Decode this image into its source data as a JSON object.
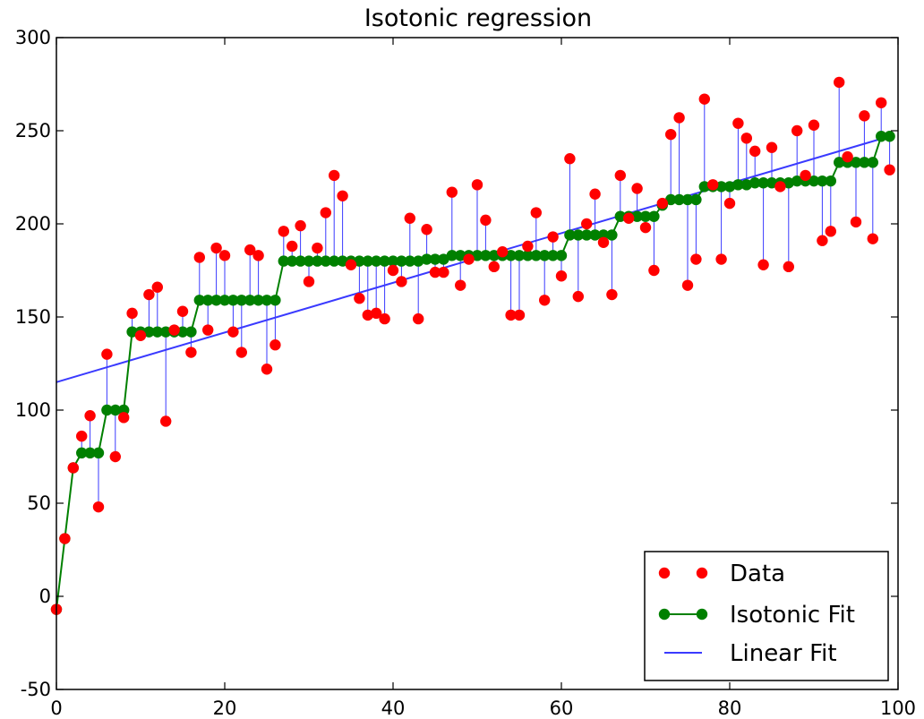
{
  "chart_data": {
    "type": "scatter",
    "title": "Isotonic regression",
    "xlabel": "",
    "ylabel": "",
    "xlim": [
      0,
      100
    ],
    "ylim": [
      -50,
      300
    ],
    "xticks": [
      0,
      20,
      40,
      60,
      80,
      100
    ],
    "yticks": [
      -50,
      0,
      50,
      100,
      150,
      200,
      250,
      300
    ],
    "grid": false,
    "legend_position": "lower-right",
    "colors": {
      "data": "#ff0000",
      "isotonic": "#008000",
      "linear": "#3a3aff"
    },
    "series": [
      {
        "name": "Data",
        "kind": "points",
        "x": [
          0,
          1,
          2,
          3,
          4,
          5,
          6,
          7,
          8,
          9,
          10,
          11,
          12,
          13,
          14,
          15,
          16,
          17,
          18,
          19,
          20,
          21,
          22,
          23,
          24,
          25,
          26,
          27,
          28,
          29,
          30,
          31,
          32,
          33,
          34,
          35,
          36,
          37,
          38,
          39,
          40,
          41,
          42,
          43,
          44,
          45,
          46,
          47,
          48,
          49,
          50,
          51,
          52,
          53,
          54,
          55,
          56,
          57,
          58,
          59,
          60,
          61,
          62,
          63,
          64,
          65,
          66,
          67,
          68,
          69,
          70,
          71,
          72,
          73,
          74,
          75,
          76,
          77,
          78,
          79,
          80,
          81,
          82,
          83,
          84,
          85,
          86,
          87,
          88,
          89,
          90,
          91,
          92,
          93,
          94,
          95,
          96,
          97,
          98,
          99
        ],
        "y": [
          -7,
          31,
          69,
          86,
          97,
          48,
          130,
          75,
          96,
          152,
          140,
          162,
          166,
          94,
          143,
          153,
          131,
          182,
          143,
          187,
          183,
          142,
          131,
          186,
          183,
          122,
          135,
          196,
          188,
          199,
          169,
          187,
          206,
          226,
          215,
          178,
          160,
          151,
          152,
          149,
          175,
          169,
          203,
          149,
          197,
          174,
          174,
          217,
          167,
          181,
          221,
          202,
          177,
          185,
          151,
          151,
          188,
          206,
          159,
          193,
          172,
          235,
          161,
          200,
          216,
          190,
          162,
          226,
          203,
          219,
          198,
          175,
          211,
          248,
          257,
          167,
          181,
          267,
          221,
          181,
          211,
          254,
          246,
          239,
          178,
          241,
          220,
          177,
          250,
          226,
          253,
          191,
          196,
          276,
          236,
          201,
          258,
          192,
          265,
          229
        ]
      },
      {
        "name": "Isotonic Fit",
        "kind": "line+points",
        "x": [
          0,
          1,
          2,
          3,
          4,
          5,
          6,
          7,
          8,
          9,
          10,
          11,
          12,
          13,
          14,
          15,
          16,
          17,
          18,
          19,
          20,
          21,
          22,
          23,
          24,
          25,
          26,
          27,
          28,
          29,
          30,
          31,
          32,
          33,
          34,
          35,
          36,
          37,
          38,
          39,
          40,
          41,
          42,
          43,
          44,
          45,
          46,
          47,
          48,
          49,
          50,
          51,
          52,
          53,
          54,
          55,
          56,
          57,
          58,
          59,
          60,
          61,
          62,
          63,
          64,
          65,
          66,
          67,
          68,
          69,
          70,
          71,
          72,
          73,
          74,
          75,
          76,
          77,
          78,
          79,
          80,
          81,
          82,
          83,
          84,
          85,
          86,
          87,
          88,
          89,
          90,
          91,
          92,
          93,
          94,
          95,
          96,
          97,
          98,
          99
        ],
        "y": [
          -7,
          31,
          69,
          77,
          77,
          77,
          100,
          100,
          100,
          142,
          142,
          142,
          142,
          142,
          142,
          142,
          142,
          159,
          159,
          159,
          159,
          159,
          159,
          159,
          159,
          159,
          159,
          180,
          180,
          180,
          180,
          180,
          180,
          180,
          180,
          180,
          180,
          180,
          180,
          180,
          180,
          180,
          180,
          180,
          181,
          181,
          181,
          183,
          183,
          183,
          183,
          183,
          183,
          183,
          183,
          183,
          183,
          183,
          183,
          183,
          183,
          194,
          194,
          194,
          194,
          194,
          194,
          204,
          204,
          204,
          204,
          204,
          210,
          213,
          213,
          213,
          213,
          220,
          220,
          220,
          220,
          221,
          221,
          222,
          222,
          222,
          222,
          222,
          223,
          223,
          223,
          223,
          223,
          233,
          233,
          233,
          233,
          233,
          247,
          247
        ]
      },
      {
        "name": "Linear Fit",
        "kind": "line",
        "x": [
          0,
          99
        ],
        "y": [
          115,
          247
        ]
      }
    ]
  }
}
